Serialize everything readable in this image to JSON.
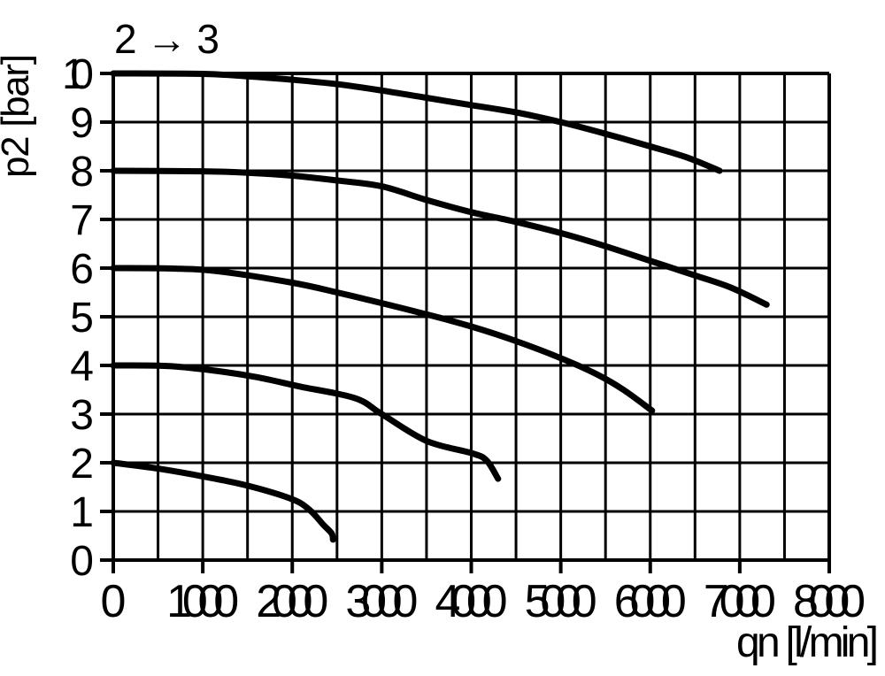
{
  "chart_data": {
    "type": "line",
    "title": "2 → 3",
    "xlabel": "qn [l/min]",
    "ylabel": "p2 [bar]",
    "xlim": [
      0,
      8000
    ],
    "ylim": [
      0,
      10
    ],
    "x_major_ticks": [
      "0",
      "1000",
      "2000",
      "3000",
      "4000",
      "5000",
      "6000",
      "7000",
      "8000"
    ],
    "x_grid_step": 500,
    "y_ticks": [
      "0",
      "1",
      "2",
      "3",
      "4",
      "5",
      "6",
      "7",
      "8",
      "9",
      "10"
    ],
    "y_grid_step": 1,
    "grid": true,
    "legend": false,
    "line_color": "#000000",
    "grid_color": "#000000",
    "series": [
      {
        "start_p2": 10,
        "points": [
          [
            0,
            10
          ],
          [
            1000,
            9.99
          ],
          [
            1500,
            9.94
          ],
          [
            2000,
            9.87
          ],
          [
            2500,
            9.78
          ],
          [
            3000,
            9.65
          ],
          [
            3500,
            9.5
          ],
          [
            4000,
            9.35
          ],
          [
            4500,
            9.2
          ],
          [
            5000,
            9.0
          ],
          [
            5500,
            8.76
          ],
          [
            6000,
            8.5
          ],
          [
            6400,
            8.28
          ],
          [
            6775,
            8.0
          ]
        ]
      },
      {
        "start_p2": 8,
        "points": [
          [
            0,
            8
          ],
          [
            1000,
            7.99
          ],
          [
            1500,
            7.96
          ],
          [
            2000,
            7.9
          ],
          [
            2500,
            7.8
          ],
          [
            3000,
            7.68
          ],
          [
            3500,
            7.4
          ],
          [
            4000,
            7.15
          ],
          [
            4500,
            6.95
          ],
          [
            5000,
            6.72
          ],
          [
            5500,
            6.45
          ],
          [
            6000,
            6.15
          ],
          [
            6500,
            5.85
          ],
          [
            6900,
            5.6
          ],
          [
            7300,
            5.25
          ]
        ]
      },
      {
        "start_p2": 6,
        "points": [
          [
            0,
            6
          ],
          [
            700,
            5.99
          ],
          [
            1200,
            5.93
          ],
          [
            2000,
            5.7
          ],
          [
            2500,
            5.5
          ],
          [
            3000,
            5.28
          ],
          [
            3500,
            5.05
          ],
          [
            4000,
            4.8
          ],
          [
            4500,
            4.5
          ],
          [
            5000,
            4.15
          ],
          [
            5400,
            3.82
          ],
          [
            5700,
            3.5
          ],
          [
            6020,
            3.07
          ]
        ]
      },
      {
        "start_p2": 4,
        "points": [
          [
            0,
            4
          ],
          [
            600,
            3.99
          ],
          [
            1100,
            3.9
          ],
          [
            1600,
            3.76
          ],
          [
            2100,
            3.56
          ],
          [
            2700,
            3.33
          ],
          [
            3000,
            3.0
          ],
          [
            3500,
            2.45
          ],
          [
            4000,
            2.2
          ],
          [
            4170,
            2.05
          ],
          [
            4300,
            1.67
          ]
        ]
      },
      {
        "start_p2": 2,
        "points": [
          [
            0,
            2
          ],
          [
            500,
            1.88
          ],
          [
            1000,
            1.72
          ],
          [
            1500,
            1.53
          ],
          [
            2000,
            1.25
          ],
          [
            2200,
            1.02
          ],
          [
            2350,
            0.72
          ],
          [
            2440,
            0.55
          ],
          [
            2455,
            0.42
          ]
        ]
      }
    ]
  }
}
